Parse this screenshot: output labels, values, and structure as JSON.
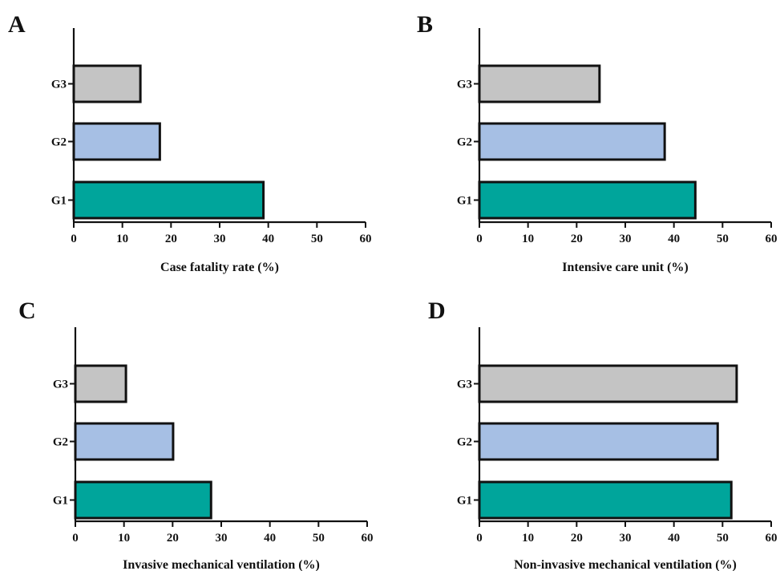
{
  "colors": {
    "G1": "#00A59B",
    "G2": "#A6BFE4",
    "G3": "#C4C4C4",
    "stroke": "#111111"
  },
  "chart_data": [
    {
      "type": "bar",
      "orientation": "horizontal",
      "panel": "A",
      "categories": [
        "G1",
        "G2",
        "G3"
      ],
      "values": [
        39,
        17.7,
        13.7
      ],
      "xlabel": "Case fatality rate (%)",
      "ylabel": "",
      "xlim": [
        0,
        60
      ],
      "xticks": [
        "0",
        "10",
        "20",
        "30",
        "40",
        "50",
        "60"
      ],
      "grid": false
    },
    {
      "type": "bar",
      "orientation": "horizontal",
      "panel": "B",
      "categories": [
        "G1",
        "G2",
        "G3"
      ],
      "values": [
        44.4,
        38.1,
        24.7
      ],
      "xlabel": "Intensive care unit (%)",
      "ylabel": "",
      "xlim": [
        0,
        60
      ],
      "xticks": [
        "0",
        "10",
        "20",
        "30",
        "40",
        "50",
        "60"
      ],
      "grid": false
    },
    {
      "type": "bar",
      "orientation": "horizontal",
      "panel": "C",
      "categories": [
        "G1",
        "G2",
        "G3"
      ],
      "values": [
        27.9,
        20.1,
        10.4
      ],
      "xlabel": "Invasive mechanical ventilation (%)",
      "ylabel": "",
      "xlim": [
        0,
        60
      ],
      "xticks": [
        "0",
        "10",
        "20",
        "30",
        "40",
        "50",
        "60"
      ],
      "grid": false
    },
    {
      "type": "bar",
      "orientation": "horizontal",
      "panel": "D",
      "categories": [
        "G1",
        "G2",
        "G3"
      ],
      "values": [
        51.8,
        49,
        52.9
      ],
      "xlabel": "Non-invasive mechanical ventilation (%)",
      "ylabel": "",
      "xlim": [
        0,
        60
      ],
      "xticks": [
        "0",
        "10",
        "20",
        "30",
        "40",
        "50",
        "60"
      ],
      "grid": false
    }
  ]
}
